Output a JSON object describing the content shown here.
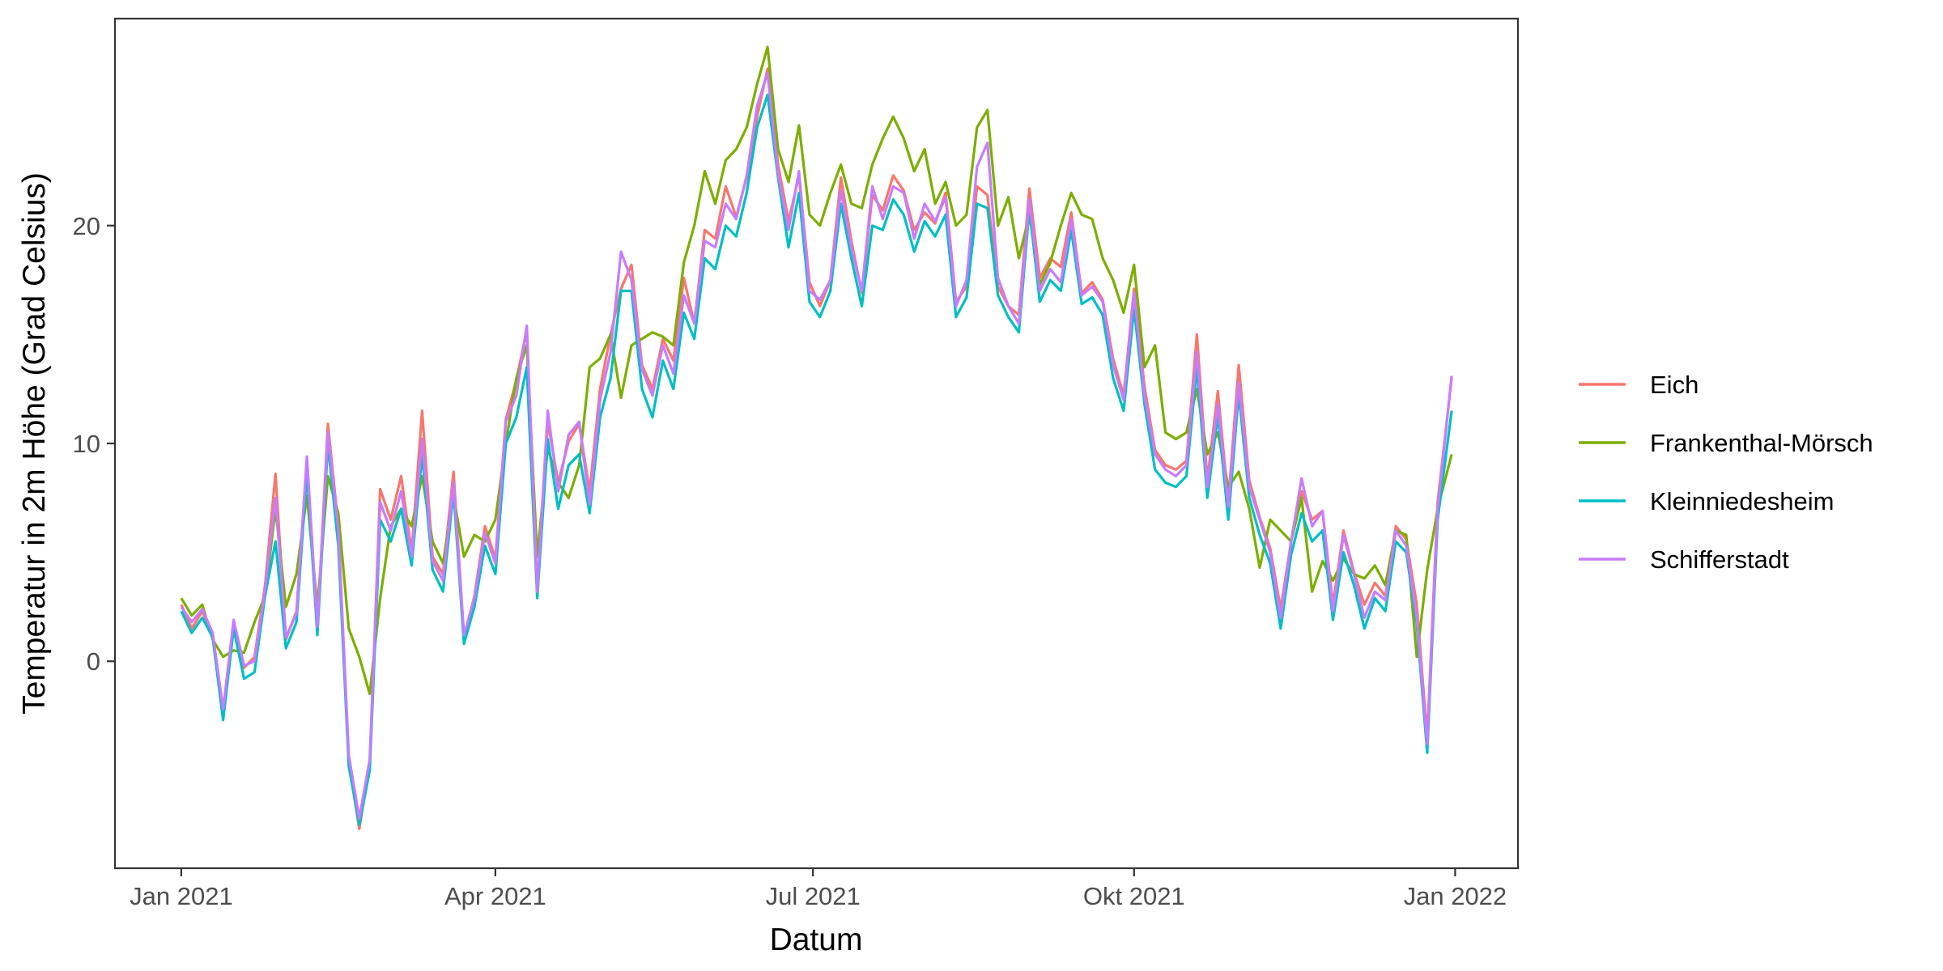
{
  "chart_data": {
    "type": "line",
    "xlabel": "Datum",
    "ylabel": "Temperatur in 2m Höhe (Grad Celsius)",
    "x_ticks": [
      {
        "date": "2021-01-01",
        "label": "Jan 2021"
      },
      {
        "date": "2021-04-01",
        "label": "Apr 2021"
      },
      {
        "date": "2021-07-01",
        "label": "Jul 2021"
      },
      {
        "date": "2021-10-01",
        "label": "Okt 2021"
      },
      {
        "date": "2022-01-01",
        "label": "Jan 2022"
      }
    ],
    "y_ticks": [
      {
        "value": 0,
        "label": "0"
      },
      {
        "value": 10,
        "label": "10"
      },
      {
        "value": 20,
        "label": "20"
      }
    ],
    "xlim": [
      "2020-12-13",
      "2022-01-19"
    ],
    "ylim": [
      -9.5,
      29.5
    ],
    "grid": false,
    "legend_position": "right",
    "x": [
      "2021-01-01",
      "2021-01-04",
      "2021-01-07",
      "2021-01-10",
      "2021-01-13",
      "2021-01-16",
      "2021-01-19",
      "2021-01-22",
      "2021-01-25",
      "2021-01-28",
      "2021-01-31",
      "2021-02-03",
      "2021-02-06",
      "2021-02-09",
      "2021-02-12",
      "2021-02-15",
      "2021-02-18",
      "2021-02-21",
      "2021-02-24",
      "2021-02-27",
      "2021-03-02",
      "2021-03-05",
      "2021-03-08",
      "2021-03-11",
      "2021-03-14",
      "2021-03-17",
      "2021-03-20",
      "2021-03-23",
      "2021-03-26",
      "2021-03-29",
      "2021-04-01",
      "2021-04-04",
      "2021-04-07",
      "2021-04-10",
      "2021-04-13",
      "2021-04-16",
      "2021-04-19",
      "2021-04-22",
      "2021-04-25",
      "2021-04-28",
      "2021-05-01",
      "2021-05-04",
      "2021-05-07",
      "2021-05-10",
      "2021-05-13",
      "2021-05-16",
      "2021-05-19",
      "2021-05-22",
      "2021-05-25",
      "2021-05-28",
      "2021-05-31",
      "2021-06-03",
      "2021-06-06",
      "2021-06-09",
      "2021-06-12",
      "2021-06-15",
      "2021-06-18",
      "2021-06-21",
      "2021-06-24",
      "2021-06-27",
      "2021-06-30",
      "2021-07-03",
      "2021-07-06",
      "2021-07-09",
      "2021-07-12",
      "2021-07-15",
      "2021-07-18",
      "2021-07-21",
      "2021-07-24",
      "2021-07-27",
      "2021-07-30",
      "2021-08-02",
      "2021-08-05",
      "2021-08-08",
      "2021-08-11",
      "2021-08-14",
      "2021-08-17",
      "2021-08-20",
      "2021-08-23",
      "2021-08-26",
      "2021-08-29",
      "2021-09-01",
      "2021-09-04",
      "2021-09-07",
      "2021-09-10",
      "2021-09-13",
      "2021-09-16",
      "2021-09-19",
      "2021-09-22",
      "2021-09-25",
      "2021-09-28",
      "2021-10-01",
      "2021-10-04",
      "2021-10-07",
      "2021-10-10",
      "2021-10-13",
      "2021-10-16",
      "2021-10-19",
      "2021-10-22",
      "2021-10-25",
      "2021-10-28",
      "2021-10-31",
      "2021-11-03",
      "2021-11-06",
      "2021-11-09",
      "2021-11-12",
      "2021-11-15",
      "2021-11-18",
      "2021-11-21",
      "2021-11-24",
      "2021-11-27",
      "2021-11-30",
      "2021-12-03",
      "2021-12-06",
      "2021-12-09",
      "2021-12-12",
      "2021-12-15",
      "2021-12-18",
      "2021-12-21",
      "2021-12-24",
      "2021-12-27",
      "2021-12-31"
    ],
    "series": [
      {
        "name": "Eich",
        "color": "#F8766D",
        "values": [
          2.6,
          1.5,
          2.3,
          1.2,
          -2.4,
          1.8,
          -0.3,
          0.2,
          3.5,
          8.6,
          1.0,
          2.3,
          9.2,
          1.5,
          10.9,
          6.2,
          -4.6,
          -7.7,
          -4.7,
          7.9,
          6.5,
          8.5,
          5.0,
          11.5,
          4.8,
          4.0,
          8.7,
          1.1,
          3.0,
          6.2,
          4.7,
          11.1,
          12.9,
          15.2,
          3.2,
          11.0,
          8.2,
          10.1,
          10.9,
          7.8,
          12.5,
          15.0,
          17.1,
          18.2,
          13.6,
          12.5,
          14.8,
          13.8,
          17.6,
          15.5,
          19.8,
          19.4,
          21.8,
          20.4,
          22.2,
          25.0,
          27.2,
          22.8,
          20.2,
          22.3,
          17.4,
          16.3,
          17.5,
          22.2,
          19.3,
          16.9,
          21.4,
          20.7,
          22.3,
          21.6,
          19.8,
          20.6,
          20.1,
          21.5,
          16.5,
          17.2,
          21.8,
          21.4,
          17.2,
          16.3,
          15.9,
          21.7,
          17.6,
          18.5,
          18.1,
          20.6,
          16.9,
          17.4,
          16.6,
          13.9,
          12.2,
          17.1,
          12.6,
          9.7,
          9.0,
          8.8,
          9.2,
          15.0,
          8.3,
          12.4,
          7.3,
          13.6,
          8.3,
          6.6,
          5.2,
          2.4,
          5.5,
          7.8,
          6.5,
          6.9,
          2.6,
          6.0,
          4.1,
          2.6,
          3.6,
          3.0,
          6.2,
          5.6,
          2.6,
          -3.5,
          7.3,
          13.0
        ]
      },
      {
        "name": "Frankenthal-Mörsch",
        "color": "#7CAE00",
        "values": [
          2.9,
          2.1,
          2.6,
          1.0,
          0.2,
          0.5,
          0.4,
          1.8,
          3.0,
          7.0,
          2.5,
          4.0,
          7.6,
          2.5,
          8.5,
          6.8,
          1.5,
          0.2,
          -1.5,
          2.9,
          6.2,
          7.0,
          6.2,
          8.5,
          5.5,
          4.5,
          7.6,
          4.8,
          5.8,
          5.5,
          6.5,
          10.0,
          13.0,
          14.5,
          4.8,
          9.8,
          8.2,
          7.5,
          9.0,
          13.5,
          13.9,
          15.0,
          12.1,
          14.5,
          14.8,
          15.1,
          14.9,
          14.5,
          18.3,
          20.0,
          22.5,
          21.0,
          23.0,
          23.5,
          24.5,
          26.5,
          28.2,
          23.5,
          22.0,
          24.6,
          20.5,
          20.0,
          21.5,
          22.8,
          21.0,
          20.8,
          22.8,
          24.0,
          25.0,
          24.0,
          22.5,
          23.5,
          21.0,
          22.0,
          20.0,
          20.5,
          24.5,
          25.3,
          20.0,
          21.3,
          18.5,
          20.5,
          17.3,
          18.3,
          20.0,
          21.5,
          20.5,
          20.3,
          18.5,
          17.5,
          16.0,
          18.2,
          13.5,
          14.5,
          10.5,
          10.2,
          10.5,
          12.5,
          9.5,
          10.5,
          8.0,
          8.7,
          7.0,
          4.3,
          6.5,
          6.0,
          5.5,
          7.5,
          3.2,
          4.6,
          3.7,
          4.7,
          4.0,
          3.8,
          4.4,
          3.5,
          6.0,
          5.8,
          0.2,
          4.2,
          7.0,
          9.5
        ]
      },
      {
        "name": "Kleinniedesheim",
        "color": "#00BFC4",
        "values": [
          2.3,
          1.3,
          2.0,
          1.1,
          -2.7,
          1.5,
          -0.8,
          -0.5,
          3.0,
          5.5,
          0.6,
          1.8,
          8.7,
          1.2,
          10.0,
          5.3,
          -4.8,
          -7.5,
          -5.0,
          6.5,
          5.5,
          7.0,
          4.4,
          9.5,
          4.2,
          3.2,
          7.8,
          0.8,
          2.5,
          5.3,
          4.0,
          10.0,
          11.2,
          13.5,
          2.9,
          10.2,
          7.0,
          9.0,
          9.5,
          6.8,
          11.2,
          13.0,
          17.0,
          17.0,
          12.5,
          11.2,
          13.8,
          12.5,
          16.0,
          14.8,
          18.5,
          18.0,
          20.0,
          19.5,
          21.5,
          24.5,
          26.0,
          22.2,
          19.0,
          21.5,
          16.5,
          15.8,
          17.0,
          21.0,
          18.5,
          16.3,
          20.0,
          19.8,
          21.2,
          20.5,
          18.8,
          20.2,
          19.5,
          20.5,
          15.8,
          16.7,
          21.0,
          20.8,
          16.8,
          15.8,
          15.1,
          20.8,
          16.5,
          17.5,
          17.0,
          19.8,
          16.4,
          16.7,
          15.9,
          13.0,
          11.5,
          16.2,
          11.8,
          8.8,
          8.2,
          8.0,
          8.5,
          13.5,
          7.5,
          11.3,
          6.5,
          12.3,
          7.5,
          5.8,
          4.5,
          1.5,
          4.9,
          6.8,
          5.5,
          6.0,
          1.9,
          5.0,
          3.5,
          1.5,
          2.9,
          2.3,
          5.5,
          5.0,
          1.7,
          -4.2,
          6.5,
          11.5
        ]
      },
      {
        "name": "Schifferstadt",
        "color": "#C77CFF",
        "values": [
          2.5,
          1.8,
          2.4,
          1.3,
          -2.2,
          1.9,
          -0.2,
          0.0,
          3.3,
          7.5,
          1.1,
          2.2,
          9.4,
          1.6,
          10.5,
          6.0,
          -4.3,
          -7.2,
          -4.5,
          7.3,
          6.0,
          7.8,
          4.8,
          10.2,
          4.6,
          3.7,
          8.2,
          1.2,
          2.9,
          5.9,
          4.5,
          11.0,
          12.2,
          15.4,
          3.2,
          11.5,
          7.8,
          10.4,
          11.0,
          7.2,
          12.0,
          14.2,
          18.8,
          17.5,
          13.4,
          12.2,
          14.5,
          13.2,
          16.8,
          15.5,
          19.3,
          19.0,
          21.0,
          20.3,
          22.3,
          25.5,
          27.0,
          22.4,
          19.8,
          22.5,
          17.0,
          16.6,
          17.5,
          21.6,
          19.0,
          17.0,
          21.8,
          20.3,
          21.8,
          21.5,
          19.4,
          21.0,
          20.2,
          21.3,
          16.3,
          17.5,
          22.7,
          23.8,
          17.6,
          16.3,
          15.5,
          21.2,
          17.0,
          18.0,
          17.4,
          20.3,
          16.8,
          17.2,
          16.5,
          13.6,
          12.0,
          16.9,
          12.2,
          9.5,
          8.8,
          8.5,
          9.0,
          14.2,
          8.0,
          11.8,
          7.1,
          12.8,
          8.0,
          6.5,
          5.0,
          2.0,
          5.5,
          8.4,
          6.2,
          6.9,
          2.3,
          5.8,
          4.0,
          2.0,
          3.2,
          2.8,
          6.0,
          5.3,
          2.0,
          -3.8,
          7.0,
          13.1
        ]
      }
    ]
  }
}
